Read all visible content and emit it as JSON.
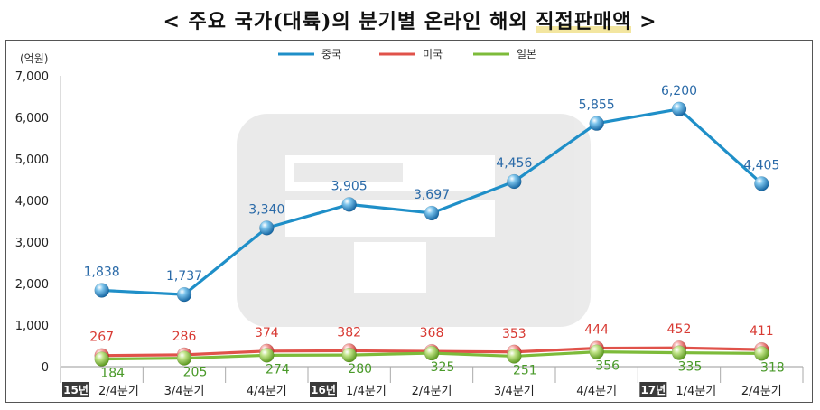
{
  "title": {
    "prefix": "< 주요 국가(대륙)의 분기별 온라인 해외 ",
    "highlight": "직접판매액",
    "suffix": " >"
  },
  "chart_data": {
    "type": "line",
    "title": "주요 국가(대륙)의 분기별 온라인 해외 직접판매액",
    "ylabel": "(억원)",
    "ylim": [
      0,
      7000
    ],
    "yticks": [
      0,
      1000,
      2000,
      3000,
      4000,
      5000,
      6000,
      7000
    ],
    "ytick_labels": [
      "0",
      "1,000",
      "2,000",
      "3,000",
      "4,000",
      "5,000",
      "6,000",
      "7,000"
    ],
    "categories": [
      "2/4분기",
      "3/4분기",
      "4/4분기",
      "1/4분기",
      "2/4분기",
      "3/4분기",
      "4/4분기",
      "1/4분기",
      "2/4분기"
    ],
    "year_markers": [
      {
        "index": 0,
        "label": "15년"
      },
      {
        "index": 3,
        "label": "16년"
      },
      {
        "index": 7,
        "label": "17년"
      }
    ],
    "legend_position": "top-center",
    "grid": false,
    "series": [
      {
        "name": "중국",
        "color": "#1f8fc8",
        "values": [
          1838,
          1737,
          3340,
          3905,
          3697,
          4456,
          5855,
          6200,
          4405
        ],
        "labels": [
          "1,838",
          "1,737",
          "3,340",
          "3,905",
          "3,697",
          "4,456",
          "5,855",
          "6,200",
          "4,405"
        ]
      },
      {
        "name": "미국",
        "color": "#e0524a",
        "values": [
          267,
          286,
          374,
          382,
          368,
          353,
          444,
          452,
          411
        ],
        "labels": [
          "267",
          "286",
          "374",
          "382",
          "368",
          "353",
          "444",
          "452",
          "411"
        ]
      },
      {
        "name": "일본",
        "color": "#7dbb3a",
        "values": [
          184,
          205,
          274,
          280,
          325,
          251,
          356,
          335,
          318
        ],
        "labels": [
          "184",
          "205",
          "274",
          "280",
          "325",
          "251",
          "356",
          "335",
          "318"
        ]
      }
    ]
  }
}
